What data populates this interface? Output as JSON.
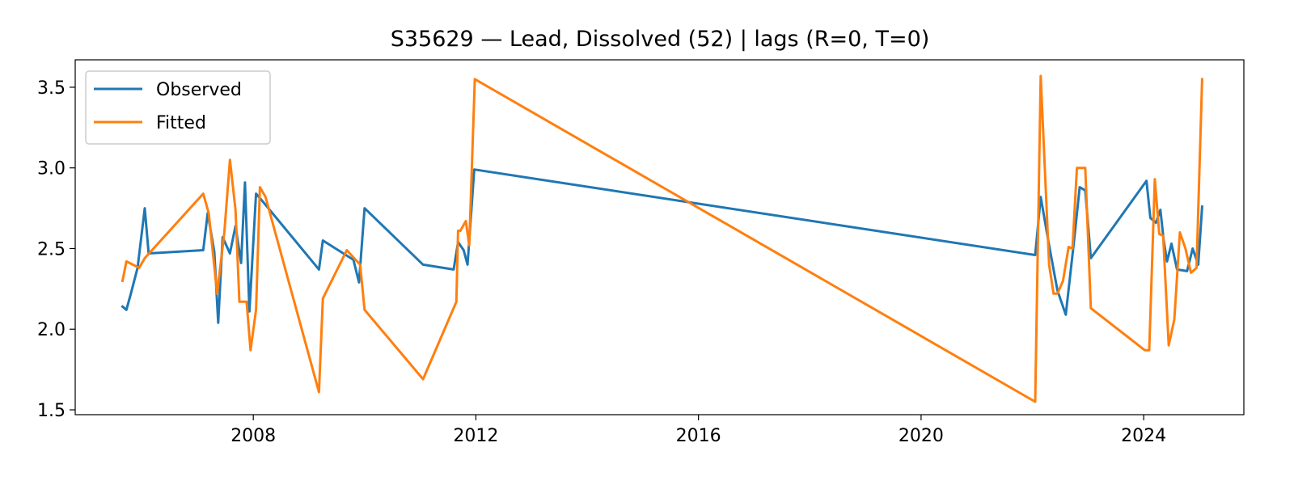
{
  "chart_data": {
    "type": "line",
    "title": "S35629 — Lead, Dissolved (52) | lags (R=0, T=0)",
    "xlabel": "",
    "ylabel": "",
    "xlim": [
      2004.8,
      2025.8
    ],
    "ylim": [
      1.47,
      3.67
    ],
    "xticks": [
      2008,
      2012,
      2016,
      2020,
      2024
    ],
    "yticks": [
      1.5,
      2.0,
      2.5,
      3.0,
      3.5
    ],
    "xtick_labels": [
      "2008",
      "2012",
      "2016",
      "2020",
      "2024"
    ],
    "ytick_labels": [
      "1.5",
      "2.0",
      "2.5",
      "3.0",
      "3.5"
    ],
    "legend_position": "upper-left",
    "series": [
      {
        "name": "Observed",
        "color": "#1f77b4",
        "points": [
          [
            2005.65,
            2.14
          ],
          [
            2005.72,
            2.12
          ],
          [
            2005.8,
            2.22
          ],
          [
            2005.92,
            2.38
          ],
          [
            2006.05,
            2.75
          ],
          [
            2006.12,
            2.47
          ],
          [
            2007.1,
            2.49
          ],
          [
            2007.18,
            2.72
          ],
          [
            2007.3,
            2.48
          ],
          [
            2007.37,
            2.04
          ],
          [
            2007.45,
            2.57
          ],
          [
            2007.58,
            2.47
          ],
          [
            2007.68,
            2.64
          ],
          [
            2007.78,
            2.41
          ],
          [
            2007.85,
            2.91
          ],
          [
            2007.93,
            2.11
          ],
          [
            2008.05,
            2.84
          ],
          [
            2008.15,
            2.8
          ],
          [
            2009.18,
            2.37
          ],
          [
            2009.25,
            2.55
          ],
          [
            2009.8,
            2.43
          ],
          [
            2009.9,
            2.29
          ],
          [
            2010.0,
            2.75
          ],
          [
            2011.05,
            2.4
          ],
          [
            2011.6,
            2.37
          ],
          [
            2011.68,
            2.54
          ],
          [
            2011.78,
            2.49
          ],
          [
            2011.85,
            2.4
          ],
          [
            2011.97,
            2.99
          ],
          [
            2022.05,
            2.46
          ],
          [
            2022.15,
            2.82
          ],
          [
            2022.3,
            2.52
          ],
          [
            2022.45,
            2.24
          ],
          [
            2022.6,
            2.09
          ],
          [
            2022.75,
            2.55
          ],
          [
            2022.85,
            2.88
          ],
          [
            2022.95,
            2.86
          ],
          [
            2023.05,
            2.44
          ],
          [
            2024.05,
            2.92
          ],
          [
            2024.12,
            2.69
          ],
          [
            2024.22,
            2.66
          ],
          [
            2024.3,
            2.74
          ],
          [
            2024.36,
            2.55
          ],
          [
            2024.42,
            2.42
          ],
          [
            2024.5,
            2.53
          ],
          [
            2024.6,
            2.37
          ],
          [
            2024.78,
            2.36
          ],
          [
            2024.88,
            2.5
          ],
          [
            2024.98,
            2.4
          ],
          [
            2025.05,
            2.76
          ]
        ]
      },
      {
        "name": "Fitted",
        "color": "#ff7f0e",
        "points": [
          [
            2005.65,
            2.3
          ],
          [
            2005.72,
            2.42
          ],
          [
            2005.95,
            2.38
          ],
          [
            2006.05,
            2.44
          ],
          [
            2007.1,
            2.84
          ],
          [
            2007.2,
            2.72
          ],
          [
            2007.35,
            2.22
          ],
          [
            2007.48,
            2.6
          ],
          [
            2007.58,
            3.05
          ],
          [
            2007.68,
            2.74
          ],
          [
            2007.75,
            2.17
          ],
          [
            2007.88,
            2.17
          ],
          [
            2007.95,
            1.87
          ],
          [
            2008.05,
            2.12
          ],
          [
            2008.12,
            2.88
          ],
          [
            2008.22,
            2.82
          ],
          [
            2009.18,
            1.61
          ],
          [
            2009.25,
            2.19
          ],
          [
            2009.68,
            2.49
          ],
          [
            2009.92,
            2.4
          ],
          [
            2010.0,
            2.12
          ],
          [
            2011.05,
            1.69
          ],
          [
            2011.65,
            2.17
          ],
          [
            2011.68,
            2.61
          ],
          [
            2011.72,
            2.61
          ],
          [
            2011.82,
            2.67
          ],
          [
            2011.88,
            2.52
          ],
          [
            2011.98,
            3.55
          ],
          [
            2022.05,
            1.55
          ],
          [
            2022.15,
            3.57
          ],
          [
            2022.3,
            2.4
          ],
          [
            2022.38,
            2.22
          ],
          [
            2022.45,
            2.22
          ],
          [
            2022.55,
            2.3
          ],
          [
            2022.65,
            2.51
          ],
          [
            2022.72,
            2.5
          ],
          [
            2022.8,
            3.0
          ],
          [
            2022.95,
            3.0
          ],
          [
            2023.05,
            2.13
          ],
          [
            2024.02,
            1.87
          ],
          [
            2024.1,
            1.87
          ],
          [
            2024.2,
            2.93
          ],
          [
            2024.28,
            2.59
          ],
          [
            2024.35,
            2.58
          ],
          [
            2024.45,
            1.9
          ],
          [
            2024.55,
            2.06
          ],
          [
            2024.65,
            2.6
          ],
          [
            2024.75,
            2.5
          ],
          [
            2024.85,
            2.35
          ],
          [
            2024.95,
            2.38
          ],
          [
            2025.05,
            3.55
          ]
        ]
      }
    ]
  }
}
